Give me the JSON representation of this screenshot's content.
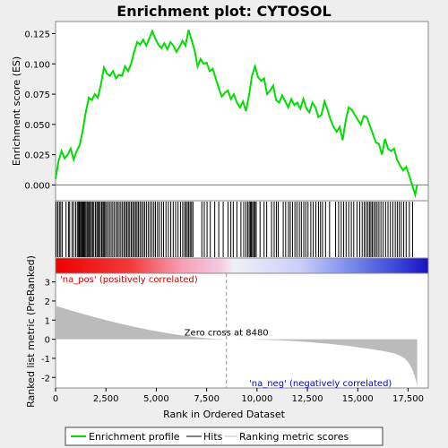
{
  "chart_data": {
    "type": "line",
    "title": "Enrichment plot: CYTOSOL",
    "xlabel": "Rank in Ordered Dataset",
    "ylabel_top": "Enrichment score (ES)",
    "ylabel_bottom": "Ranked list metric (PreRanked)",
    "xlim": [
      0,
      18500
    ],
    "x_ticks": [
      "0",
      "2,500",
      "5,000",
      "7,500",
      "10,000",
      "12,500",
      "15,000",
      "17,500"
    ],
    "x_tick_values": [
      0,
      2500,
      5000,
      7500,
      10000,
      12500,
      15000,
      17500
    ],
    "es_ylim": [
      -0.013,
      0.135
    ],
    "es_ticks": [
      "0.000",
      "0.025",
      "0.050",
      "0.075",
      "0.100",
      "0.125"
    ],
    "es_tick_values": [
      0,
      0.025,
      0.05,
      0.075,
      0.1,
      0.125
    ],
    "metric_ylim": [
      -2.55,
      3.45
    ],
    "metric_ticks": [
      "-2",
      "-1",
      "0",
      "1",
      "2",
      "3"
    ],
    "metric_tick_values": [
      -2,
      -1,
      0,
      1,
      2,
      3
    ],
    "zero_cross_label": "Zero cross at 8480",
    "zero_cross": 8480,
    "pos_label": "'na_pos' (positively correlated)",
    "neg_label": "'na_neg' (negatively correlated)",
    "total_genes": 17950,
    "series": [
      {
        "name": "Enrichment profile",
        "color": "#00dd00",
        "x": [
          0,
          150,
          300,
          450,
          600,
          750,
          900,
          1050,
          1200,
          1350,
          1500,
          1650,
          1800,
          1950,
          2100,
          2250,
          2400,
          2550,
          2700,
          2850,
          3000,
          3150,
          3300,
          3450,
          3600,
          3750,
          3900,
          4050,
          4200,
          4350,
          4500,
          4650,
          4800,
          4950,
          5100,
          5250,
          5400,
          5550,
          5700,
          5850,
          6000,
          6150,
          6300,
          6450,
          6600,
          6750,
          6900,
          7050,
          7200,
          7350,
          7500,
          7650,
          7800,
          7950,
          8100,
          8250,
          8400,
          8550,
          8700,
          8850,
          9000,
          9150,
          9300,
          9450,
          9600,
          9750,
          9900,
          10050,
          10200,
          10350,
          10500,
          10650,
          10800,
          10950,
          11100,
          11250,
          11400,
          11550,
          11700,
          11850,
          12000,
          12150,
          12300,
          12450,
          12600,
          12750,
          12900,
          13050,
          13200,
          13350,
          13500,
          13650,
          13800,
          13950,
          14100,
          14250,
          14400,
          14550,
          14700,
          14850,
          15000,
          15150,
          15300,
          15450,
          15600,
          15750,
          15900,
          16050,
          16200,
          16350,
          16500,
          16650,
          16800,
          16950,
          17100,
          17250,
          17400,
          17550,
          17700,
          17850,
          17950
        ],
        "y": [
          0.005,
          0.02,
          0.028,
          0.022,
          0.025,
          0.03,
          0.021,
          0.028,
          0.033,
          0.045,
          0.06,
          0.072,
          0.07,
          0.075,
          0.072,
          0.083,
          0.097,
          0.092,
          0.09,
          0.094,
          0.088,
          0.091,
          0.09,
          0.098,
          0.094,
          0.1,
          0.11,
          0.118,
          0.116,
          0.12,
          0.115,
          0.121,
          0.127,
          0.121,
          0.116,
          0.113,
          0.117,
          0.112,
          0.118,
          0.115,
          0.11,
          0.114,
          0.119,
          0.115,
          0.128,
          0.12,
          0.111,
          0.098,
          0.104,
          0.1,
          0.101,
          0.094,
          0.096,
          0.088,
          0.08,
          0.073,
          0.076,
          0.078,
          0.071,
          0.075,
          0.068,
          0.064,
          0.069,
          0.061,
          0.074,
          0.09,
          0.098,
          0.089,
          0.086,
          0.088,
          0.075,
          0.078,
          0.082,
          0.07,
          0.068,
          0.074,
          0.069,
          0.064,
          0.071,
          0.066,
          0.068,
          0.063,
          0.071,
          0.063,
          0.06,
          0.068,
          0.064,
          0.056,
          0.058,
          0.069,
          0.062,
          0.054,
          0.048,
          0.044,
          0.048,
          0.037,
          0.053,
          0.064,
          0.062,
          0.058,
          0.054,
          0.05,
          0.057,
          0.056,
          0.049,
          0.042,
          0.035,
          0.034,
          0.025,
          0.038,
          0.03,
          0.028,
          0.03,
          0.021,
          0.016,
          0.012,
          0.015,
          0.008,
          0.0,
          -0.008,
          0.0
        ]
      }
    ],
    "hits": [
      30,
      110,
      190,
      260,
      340,
      520,
      640,
      700,
      820,
      900,
      1000,
      1080,
      1140,
      1180,
      1230,
      1280,
      1310,
      1360,
      1400,
      1440,
      1500,
      1560,
      1610,
      1660,
      1720,
      1780,
      1840,
      1900,
      1980,
      2050,
      2100,
      2160,
      2220,
      2290,
      2350,
      2400,
      2450,
      2520,
      2600,
      2680,
      2760,
      2840,
      2920,
      3010,
      3080,
      3160,
      3240,
      3320,
      3400,
      3470,
      3540,
      3610,
      3680,
      3760,
      3830,
      3900,
      3970,
      4040,
      4110,
      4190,
      4270,
      4350,
      4430,
      4520,
      4610,
      4700,
      4790,
      4880,
      4960,
      5060,
      5150,
      5260,
      5360,
      5480,
      5600,
      5720,
      5840,
      5960,
      6080,
      6200,
      6310,
      6400,
      6470,
      6540,
      6610,
      6680,
      6750,
      6820,
      7260,
      7380,
      7520,
      7680,
      7900,
      8100,
      8320,
      8560,
      8700,
      8820,
      9000,
      9200,
      9340,
      9450,
      9540,
      9610,
      9670,
      9720,
      9780,
      9840,
      9900,
      9960,
      10150,
      10350,
      10480,
      10720,
      10850,
      10960,
      11050,
      11300,
      11420,
      11560,
      11650,
      11760,
      11880,
      11980,
      12100,
      12200,
      12320,
      12420,
      12530,
      12670,
      12790,
      12920,
      13050,
      13150,
      13250,
      13400,
      13600,
      13900,
      14050,
      14180,
      14300,
      14420,
      14550,
      14680,
      14800,
      14960,
      15100,
      15220,
      15320,
      15410,
      15500,
      15580,
      15650,
      15720,
      15800,
      15880,
      15960,
      16050,
      16150,
      16260,
      16380,
      16500,
      16620,
      16740,
      16860,
      16960,
      17060,
      17160,
      17280,
      17400,
      17560,
      17720
    ]
  },
  "legend": {
    "items": [
      {
        "label": "Enrichment profile",
        "color": "#00dd00"
      },
      {
        "label": "Hits",
        "color": "#000000"
      },
      {
        "label": "Ranking metric scores",
        "color": "#bbbbbb"
      }
    ]
  }
}
